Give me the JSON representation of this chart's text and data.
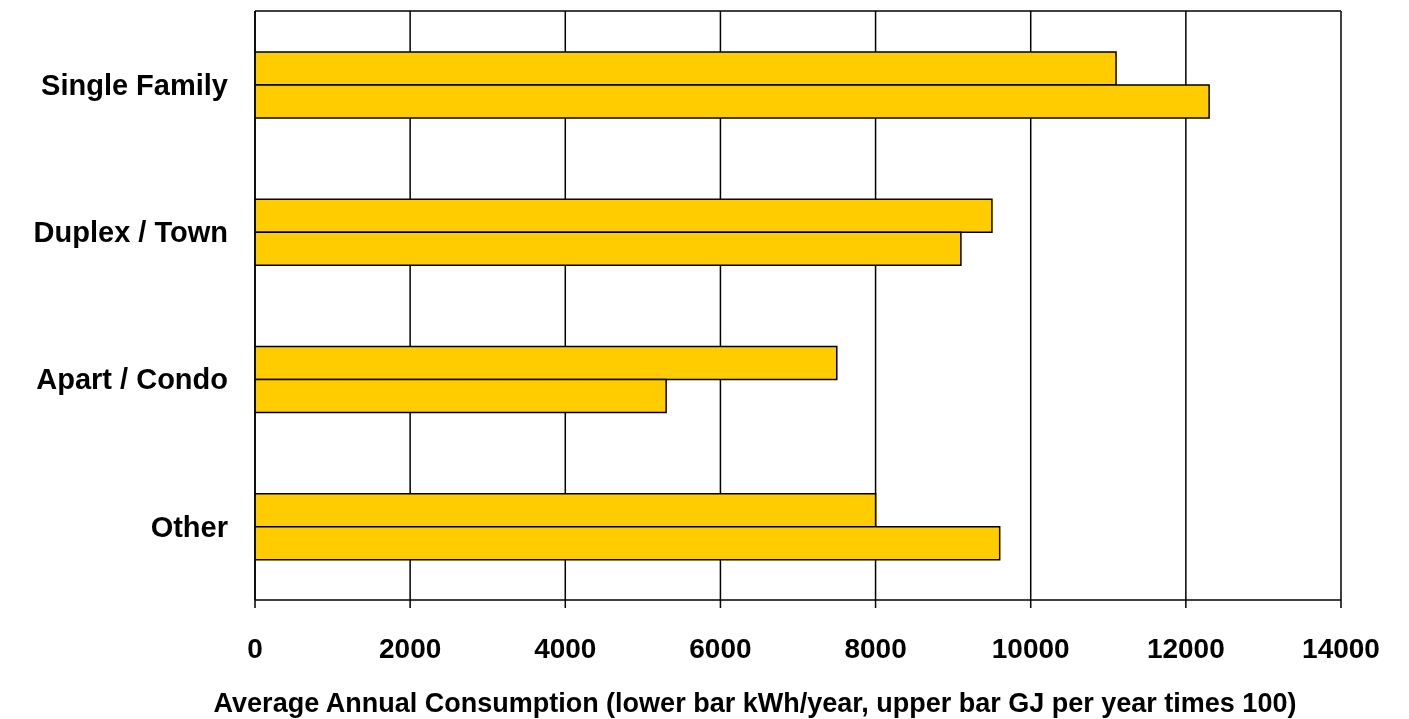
{
  "chart_data": {
    "type": "bar",
    "orientation": "horizontal",
    "categories": [
      "Single Family",
      "Duplex / Town",
      "Apart / Condo",
      "Other"
    ],
    "series": [
      {
        "color": "#ffcc00",
        "values": [
          11100,
          9500,
          7500,
          8000
        ]
      },
      {
        "color": "#ffcc00",
        "values": [
          12300,
          9100,
          5300,
          9600
        ]
      }
    ],
    "xlabel": "Average Annual Consumption (lower bar kWh/year, upper bar GJ per year times 100)",
    "xlim": [
      0,
      14000
    ],
    "xticks": [
      0,
      2000,
      4000,
      6000,
      8000,
      10000,
      12000,
      14000
    ],
    "grid": "x"
  }
}
